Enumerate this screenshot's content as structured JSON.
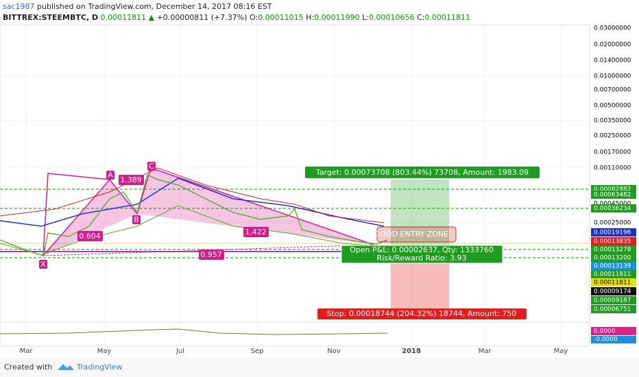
{
  "header": {
    "author": "sac1987",
    "published": "published on TradingView.com, December 14, 2017 08:16 EST"
  },
  "symbol_line": {
    "symbol": "BITTREX:STEEMBTC, D",
    "last": "0.00011811",
    "change": "+0.00000811 (+7.37%)",
    "ohlc": [
      {
        "label": "O:",
        "value": "0.00011015"
      },
      {
        "label": "H:",
        "value": "0.00011990"
      },
      {
        "label": "L:",
        "value": "0.00010656"
      },
      {
        "label": "C:",
        "value": "0.00011811"
      }
    ]
  },
  "annotations": {
    "point_a": "A",
    "point_b": "B",
    "point_c": "C",
    "point_x": "X",
    "ratio_ab": "1.389",
    "ratio_xb": "0.604",
    "ratio_bd": "1.422",
    "ratio_xd": "0.957",
    "entry_zone": "GOOD ENTRY ZONE",
    "target": "Target: 0.00073708 (803.44%) 73708, Amount: 1983.09",
    "open_pnl": "Open P&L: 0.00002637, Qty: 1333760",
    "risk_reward": "Risk/Reward Ratio: 3.93",
    "stop": "Stop: 0.00018744 (204.32%) 18744, Amount: 750"
  },
  "price_axis": [
    "0.03000000",
    "0.02000000",
    "0.01400000",
    "0.01000000",
    "0.00700000",
    "0.00500000",
    "0.00350000",
    "0.00250000",
    "0.00170000",
    "0.00110000",
    "0.00082882",
    "0.00063482",
    "0.00045000",
    "0.00036234",
    "0.00025000",
    "0.00019196",
    "0.00013835",
    "0.00013278",
    "0.00013200",
    "0.00013139",
    "0.00011811",
    "0.00011811",
    "0.00009174",
    "0.00009187",
    "0.00006751"
  ],
  "indicator_axis": [
    "0.0000",
    "-0.0000"
  ],
  "time_axis": [
    "Mar",
    "May",
    "Jul",
    "Sep",
    "Nov",
    "2018",
    "Mar",
    "May"
  ],
  "footer": {
    "created_with": "Created with",
    "brand": "TradingView"
  }
}
